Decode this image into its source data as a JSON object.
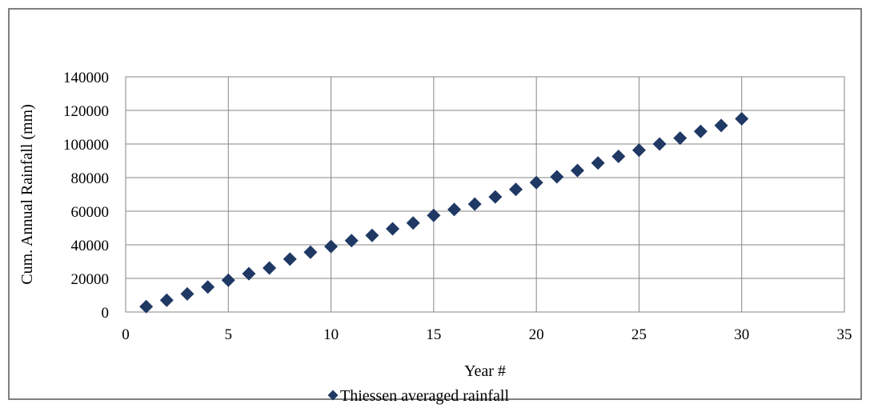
{
  "chart_data": {
    "type": "scatter",
    "title": "",
    "xlabel": "Year #",
    "ylabel": "Cum. Annual Rainfall (mm)",
    "xlim": [
      0,
      35
    ],
    "ylim": [
      0,
      140000
    ],
    "x_ticks": [
      0,
      5,
      10,
      15,
      20,
      25,
      30,
      35
    ],
    "y_ticks": [
      0,
      20000,
      40000,
      60000,
      80000,
      100000,
      120000,
      140000
    ],
    "grid": true,
    "legend_position": "bottom",
    "series": [
      {
        "name": "Thiessen averaged rainfall",
        "color": "#1f3864",
        "marker": "diamond",
        "points": [
          {
            "x": 1,
            "y": 3200
          },
          {
            "x": 2,
            "y": 7000
          },
          {
            "x": 3,
            "y": 10800
          },
          {
            "x": 4,
            "y": 14900
          },
          {
            "x": 5,
            "y": 18900
          },
          {
            "x": 6,
            "y": 22800
          },
          {
            "x": 7,
            "y": 26200
          },
          {
            "x": 8,
            "y": 31500
          },
          {
            "x": 9,
            "y": 35600
          },
          {
            "x": 10,
            "y": 39000
          },
          {
            "x": 11,
            "y": 42500
          },
          {
            "x": 12,
            "y": 45600
          },
          {
            "x": 13,
            "y": 49500
          },
          {
            "x": 14,
            "y": 53000
          },
          {
            "x": 15,
            "y": 57500
          },
          {
            "x": 16,
            "y": 61000
          },
          {
            "x": 17,
            "y": 64200
          },
          {
            "x": 18,
            "y": 68500
          },
          {
            "x": 19,
            "y": 73000
          },
          {
            "x": 20,
            "y": 77000
          },
          {
            "x": 21,
            "y": 80500
          },
          {
            "x": 22,
            "y": 84200
          },
          {
            "x": 23,
            "y": 88700
          },
          {
            "x": 24,
            "y": 92600
          },
          {
            "x": 25,
            "y": 96300
          },
          {
            "x": 26,
            "y": 100000
          },
          {
            "x": 27,
            "y": 103500
          },
          {
            "x": 28,
            "y": 107500
          },
          {
            "x": 29,
            "y": 111000
          },
          {
            "x": 30,
            "y": 115000
          }
        ]
      }
    ]
  }
}
